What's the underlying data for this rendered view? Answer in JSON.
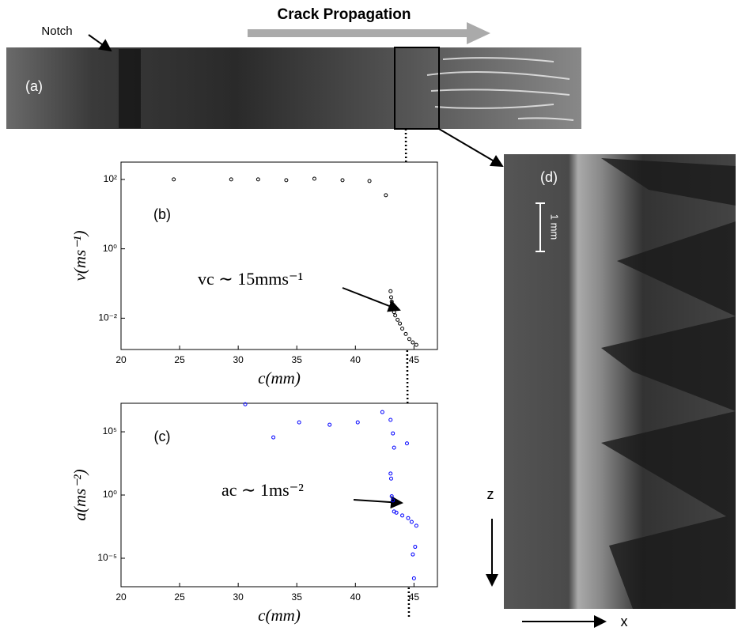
{
  "figure": {
    "title": "Crack Propagation",
    "notch": "Notch",
    "panel_a": "(a)",
    "panel_d": "(d)",
    "scale_bar": "1 mm",
    "axis_z": "z",
    "axis_x": "x"
  },
  "chart_data": [
    {
      "type": "scatter",
      "panel": "(b)",
      "xlabel": "c(mm)",
      "ylabel": "v(ms⁻¹)",
      "annotation": "vc ∼ 15mms⁻¹",
      "color": "#000000",
      "log_y": true,
      "xlim": [
        20,
        47
      ],
      "xticks": [
        20,
        25,
        30,
        35,
        40,
        45
      ],
      "ylim": [
        0.00125,
        316
      ],
      "yticks": [
        {
          "value": 100,
          "label": "10²"
        },
        {
          "value": 1,
          "label": "10⁰"
        },
        {
          "value": 0.01,
          "label": "10⁻²"
        }
      ],
      "x": [
        24.5,
        29.4,
        31.7,
        34.1,
        36.5,
        38.9,
        41.2,
        42.6,
        43.0,
        43.05,
        43.1,
        43.15,
        43.2,
        43.3,
        43.4,
        43.6,
        43.8,
        44.0,
        44.3,
        44.6,
        44.9,
        45.2
      ],
      "values": [
        100,
        100,
        100,
        95,
        105,
        95,
        90,
        35,
        0.06,
        0.04,
        0.03,
        0.022,
        0.018,
        0.015,
        0.012,
        0.009,
        0.007,
        0.005,
        0.0035,
        0.0025,
        0.002,
        0.0017
      ]
    },
    {
      "type": "scatter",
      "panel": "(c)",
      "xlabel": "c(mm)",
      "ylabel": "a(ms⁻²)",
      "annotation": "ac ∼ 1ms⁻²",
      "color": "#0000ff",
      "log_y": true,
      "xlim": [
        20,
        47
      ],
      "xticks": [
        20,
        25,
        30,
        35,
        40,
        45
      ],
      "ylim": [
        5.6e-08,
        18000000.0
      ],
      "yticks": [
        {
          "value": 100000,
          "label": "10⁵"
        },
        {
          "value": 1,
          "label": "10⁰"
        },
        {
          "value": 1e-05,
          "label": "10⁻⁵"
        }
      ],
      "x": [
        30.6,
        33.0,
        35.2,
        37.8,
        40.2,
        42.3,
        43.0,
        43.2,
        43.3,
        44.4,
        43.0,
        43.05,
        43.1,
        43.2,
        43.3,
        43.5,
        44.0,
        44.5,
        44.8,
        44.9,
        45.0,
        45.1,
        45.2
      ],
      "values": [
        15000000,
        36000,
        560000,
        360000,
        560000,
        3600000,
        870000,
        75000,
        5600,
        12000,
        50,
        20,
        0.8,
        0.37,
        0.05,
        0.04,
        0.024,
        0.015,
        0.0075,
        2e-05,
        2.6e-07,
        8e-05,
        0.0037
      ]
    }
  ]
}
